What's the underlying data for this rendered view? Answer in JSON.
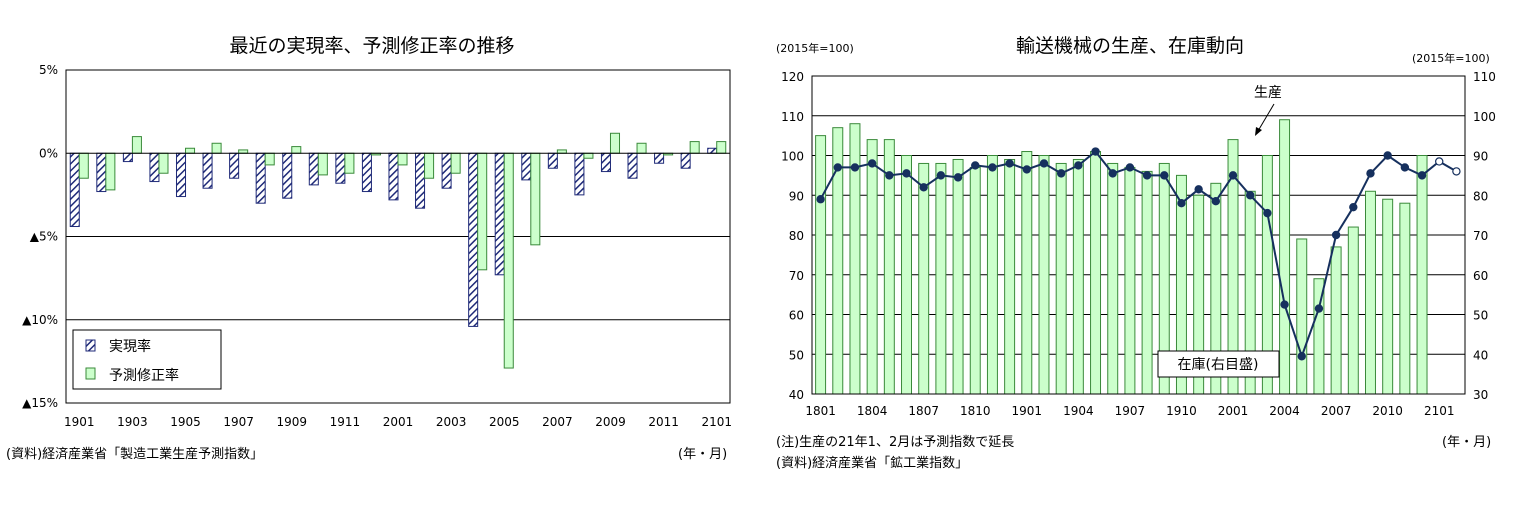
{
  "left_chart": {
    "title": "最近の実現率、予測修正率の推移",
    "source": "(資料)経済産業省「製造工業生産予測指数」",
    "xunit": "(年・月)",
    "legend": [
      "実現率",
      "予測修正率"
    ],
    "colors": {
      "realization": "#1f2a78",
      "revision": "#ccffcc",
      "revision_stroke": "#3a8a3a"
    }
  },
  "right_chart": {
    "title": "輸送機械の生産、在庫動向",
    "left_unit": "(2015年=100)",
    "right_unit": "(2015年=100)",
    "annotation_production": "生産",
    "annotation_inventory": "在庫(右目盛)",
    "note1": "(注)生産の21年1、2月は予測指数で延長",
    "note2": "(資料)経済産業省「鉱工業指数」",
    "xunit": "(年・月)",
    "colors": {
      "bar": "#ccffcc",
      "bar_stroke": "#3a8a3a",
      "line": "#16305e"
    }
  },
  "chart_data": [
    {
      "type": "bar",
      "title": "最近の実現率、予測修正率の推移",
      "ylim": [
        -15,
        5
      ],
      "yticks": [
        5,
        0,
        -5,
        -10,
        -15
      ],
      "ytick_labels": [
        "5%",
        "0%",
        "▲5%",
        "▲10%",
        "▲15%"
      ],
      "xtick_labels": [
        "1901",
        "1903",
        "1905",
        "1907",
        "1909",
        "1911",
        "2001",
        "2003",
        "2005",
        "2007",
        "2009",
        "2011",
        "2101"
      ],
      "categories": [
        "1901",
        "1902",
        "1903",
        "1904",
        "1905",
        "1906",
        "1907",
        "1908",
        "1909",
        "1910",
        "1911",
        "1912",
        "2001",
        "2002",
        "2003",
        "2004",
        "2005",
        "2006",
        "2007",
        "2008",
        "2009",
        "2010",
        "2011",
        "2012",
        "2101"
      ],
      "series": [
        {
          "name": "実現率",
          "values": [
            -4.4,
            -2.3,
            -0.5,
            -1.7,
            -2.6,
            -2.1,
            -1.5,
            -3.0,
            -2.7,
            -1.9,
            -1.8,
            -2.3,
            -2.8,
            -3.3,
            -2.1,
            -10.4,
            -7.3,
            -1.6,
            -0.9,
            -2.5,
            -1.1,
            -1.5,
            -0.6,
            -0.9,
            0.3
          ]
        },
        {
          "name": "予測修正率",
          "values": [
            -1.5,
            -2.2,
            1.0,
            -1.2,
            0.3,
            0.6,
            0.2,
            -0.7,
            0.4,
            -1.3,
            -1.2,
            -0.1,
            -0.7,
            -1.5,
            -1.2,
            -7.0,
            -12.9,
            -5.5,
            0.2,
            -0.3,
            1.2,
            0.6,
            -0.1,
            0.7,
            0.7
          ]
        }
      ],
      "legend_position": "bottom-left"
    },
    {
      "type": "bar+line",
      "title": "輸送機械の生産、在庫動向",
      "ylim_left": [
        40,
        120
      ],
      "yticks_left": [
        40,
        50,
        60,
        70,
        80,
        90,
        100,
        110,
        120
      ],
      "ylim_right": [
        30,
        110
      ],
      "yticks_right": [
        30,
        40,
        50,
        60,
        70,
        80,
        90,
        100,
        110
      ],
      "xtick_labels": [
        "1801",
        "1804",
        "1807",
        "1810",
        "1901",
        "1904",
        "1907",
        "1910",
        "2001",
        "2004",
        "2007",
        "2010",
        "2101"
      ],
      "categories": [
        "1801",
        "1802",
        "1803",
        "1804",
        "1805",
        "1806",
        "1807",
        "1808",
        "1809",
        "1810",
        "1811",
        "1812",
        "1901",
        "1902",
        "1903",
        "1904",
        "1905",
        "1906",
        "1907",
        "1908",
        "1909",
        "1910",
        "1911",
        "1912",
        "2001",
        "2002",
        "2003",
        "2004",
        "2005",
        "2006",
        "2007",
        "2008",
        "2009",
        "2010",
        "2011",
        "2012",
        "2101",
        "2102"
      ],
      "inventory_right_axis": [
        95,
        97,
        98,
        94,
        94,
        90,
        88,
        88,
        89,
        87,
        90,
        89,
        91,
        90,
        88,
        89,
        91,
        88,
        87,
        86,
        88,
        85,
        80,
        83,
        94,
        81,
        90,
        99,
        69,
        59,
        67,
        72,
        81,
        79,
        78,
        90,
        null,
        null
      ],
      "production_left_axis": [
        89,
        97,
        97,
        98,
        95,
        95.5,
        92,
        95,
        94.5,
        97.5,
        97,
        98,
        96.5,
        98,
        95.5,
        97.5,
        101,
        95.5,
        97,
        95,
        95,
        88,
        91.5,
        88.5,
        95,
        90,
        85.5,
        62.5,
        49.5,
        61.5,
        80,
        87,
        95.5,
        100,
        97,
        95,
        98.5,
        96
      ],
      "production_forecast_points": [
        "2101",
        "2102"
      ]
    }
  ]
}
